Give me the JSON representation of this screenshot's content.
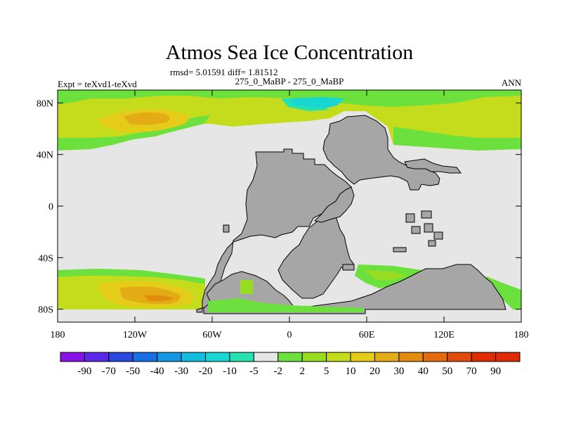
{
  "chart_data": {
    "type": "heatmap",
    "title": "Atmos Sea Ice Concentration",
    "stats_text": "rmsd= 5.01591 diff= 1.81512",
    "left_label": "Expt = teXvd1-teXvd",
    "center_label": "275_0_MaBP - 275_0_MaBP",
    "right_label": "ANN",
    "x_ticks": [
      "180",
      "120W",
      "60W",
      "0",
      "60E",
      "120E",
      "180"
    ],
    "y_ticks": [
      "80N",
      "40N",
      "0",
      "40S",
      "80S"
    ],
    "x_range": [
      -180,
      180
    ],
    "y_range": [
      -90,
      90
    ],
    "colorbar_labels": [
      "-90",
      "-70",
      "-50",
      "-40",
      "-30",
      "-20",
      "-10",
      "-5",
      "-2",
      "2",
      "5",
      "10",
      "20",
      "30",
      "40",
      "50",
      "70",
      "90"
    ],
    "colorbar_colors": [
      "#8a10e8",
      "#5a28e6",
      "#2848e0",
      "#1a6ee6",
      "#1496e4",
      "#14bce0",
      "#18d6d2",
      "#26e2b0",
      "#e6e6e6",
      "#6ce03c",
      "#98dc22",
      "#c4dc1c",
      "#e4cc18",
      "#e4ac14",
      "#e48c10",
      "#e46c0e",
      "#e24c0a",
      "#e02c06"
    ],
    "land_color": "#a6a6a6",
    "fill_color": "#e6e6e6"
  }
}
